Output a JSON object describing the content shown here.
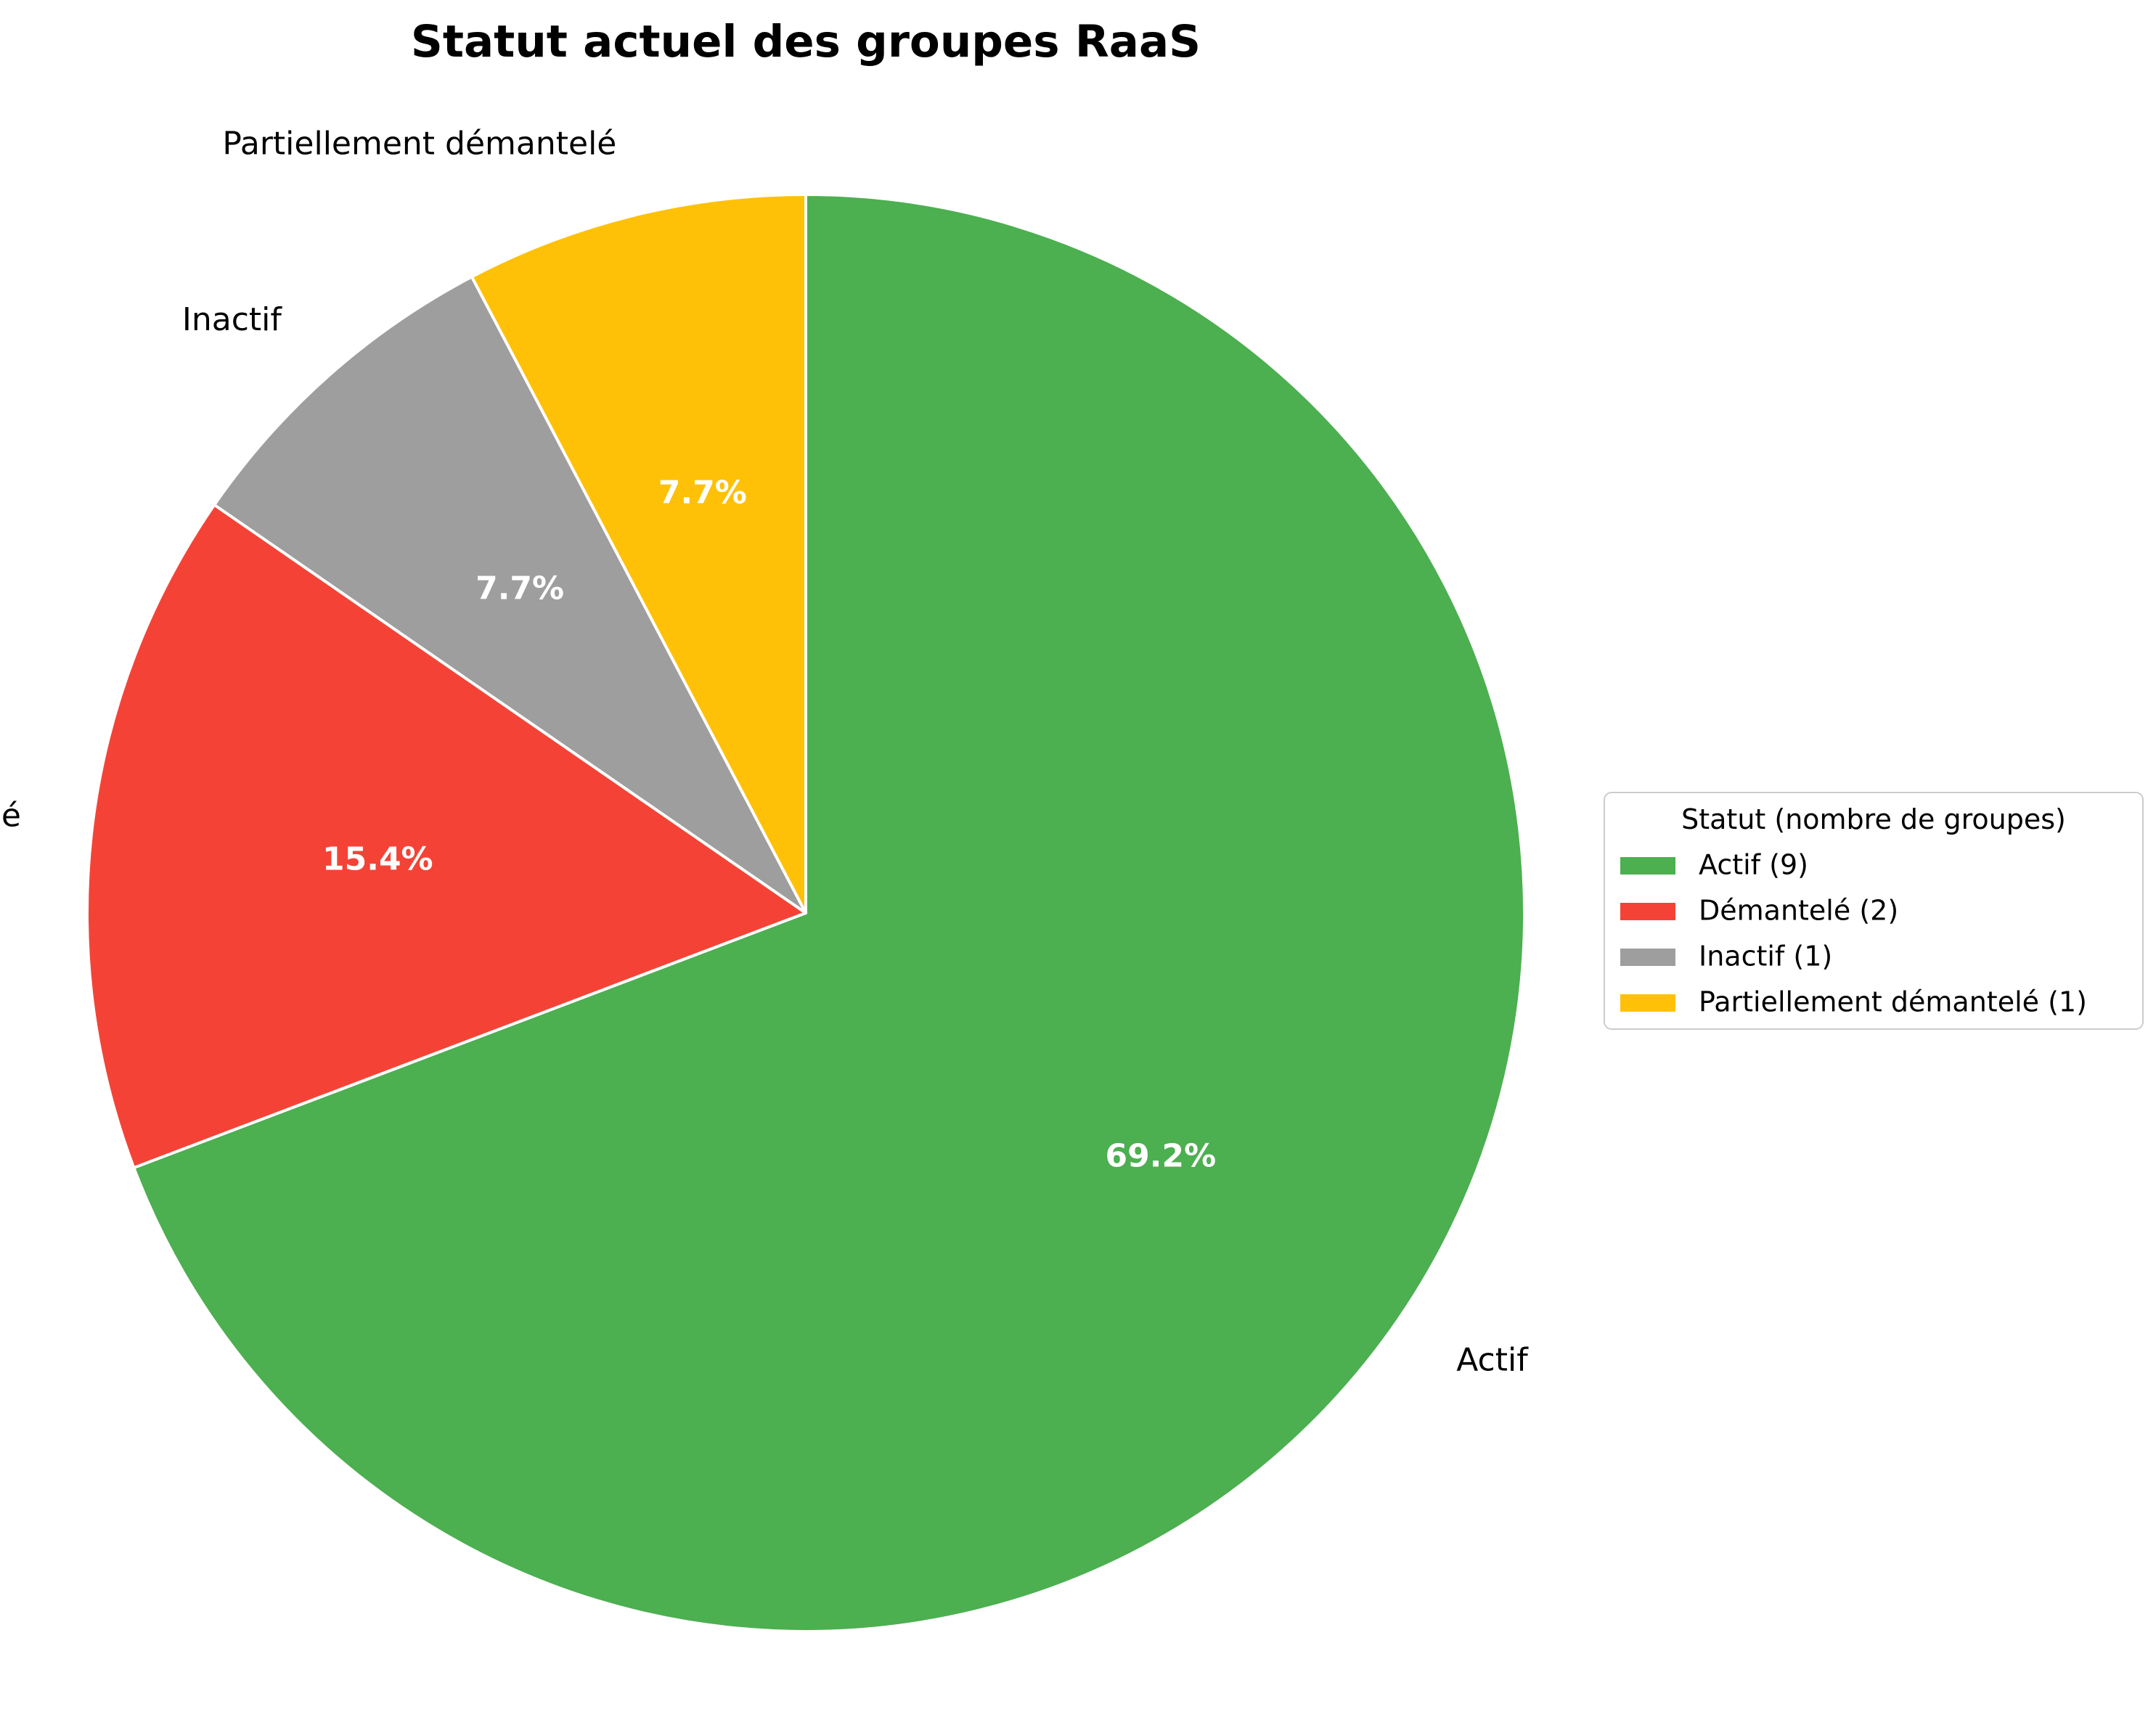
{
  "chart_data": {
    "type": "pie",
    "title": "Statut actuel des groupes RaaS",
    "categories": [
      "Actif",
      "Démantelé",
      "Inactif",
      "Partiellement démantelé"
    ],
    "values": [
      9,
      2,
      1,
      1
    ],
    "percent_labels": [
      "69.2%",
      "15.4%",
      "7.7%",
      "7.7%"
    ],
    "colors": [
      "#4caf50",
      "#f44336",
      "#9e9e9e",
      "#ffc107"
    ],
    "start_angle_deg": 90,
    "direction": "clockwise",
    "wedge_edge_color": "#ffffff",
    "legend": {
      "title": "Statut (nombre de groupes)",
      "placement": "right",
      "entries": [
        "Actif (9)",
        "Démantelé (2)",
        "Inactif (1)",
        "Partiellement démantelé (1)"
      ]
    }
  }
}
